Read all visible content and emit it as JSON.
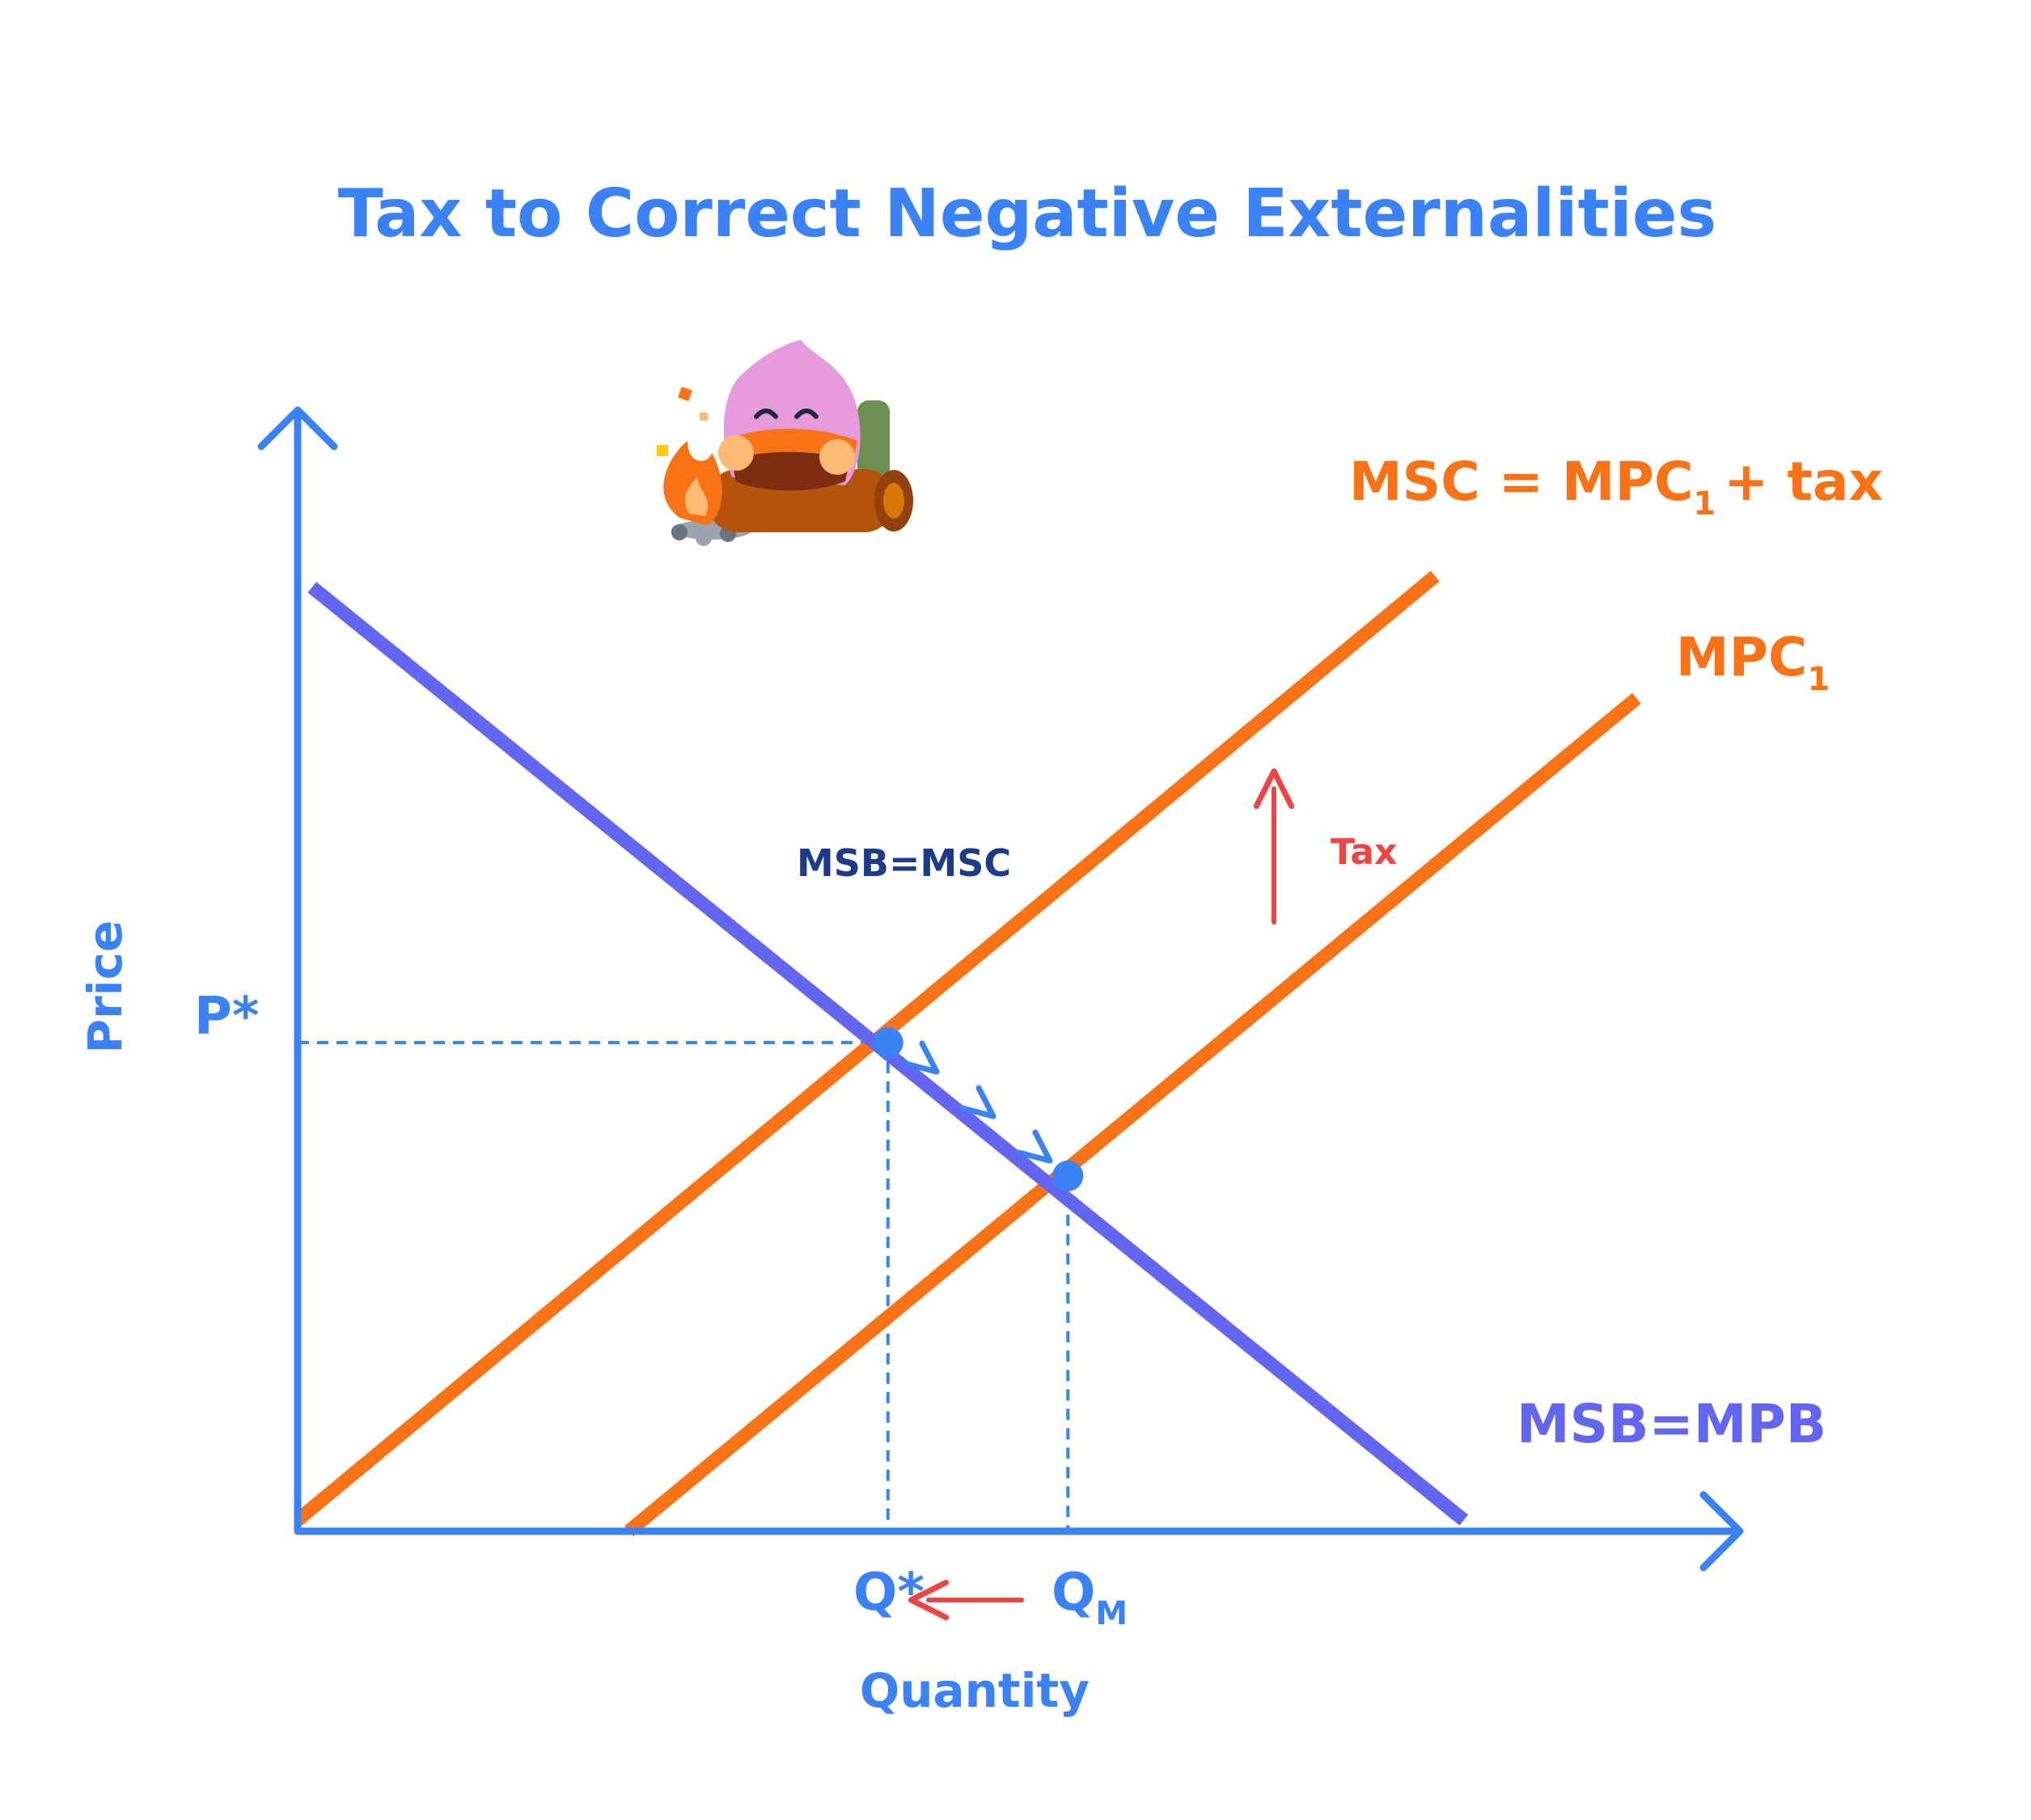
{
  "chart_data": {
    "type": "line",
    "title": "Tax to Correct Negative Externalities",
    "xlabel": "Quantity",
    "ylabel": "Price",
    "xlim": [
      0,
      10
    ],
    "ylim": [
      0,
      10
    ],
    "series": [
      {
        "name": "MSB=MPB",
        "color": "#6366f1",
        "points": [
          [
            0.1,
            8.5
          ],
          [
            8.1,
            0.1
          ]
        ]
      },
      {
        "name": "MSC = MPC1 + tax",
        "color": "#f97316",
        "points": [
          [
            0.0,
            0.1
          ],
          [
            7.9,
            8.6
          ]
        ]
      },
      {
        "name": "MPC1",
        "color": "#f97316",
        "points": [
          [
            2.3,
            0.0
          ],
          [
            9.3,
            7.5
          ]
        ]
      }
    ],
    "equilibria": [
      {
        "label": "MSB=MSC",
        "x_label": "Q*",
        "y_label": "P*",
        "x": 4.1,
        "y": 4.4
      },
      {
        "label": "",
        "x_label": "QM",
        "y_label": "",
        "x": 5.35,
        "y": 3.2
      }
    ],
    "annotations": {
      "tax_label": "Tax",
      "shift_direction": "up",
      "quantity_change": "QM to Q*"
    },
    "colors": {
      "axis": "#3b82f6",
      "demand": "#6366f1",
      "supply": "#f97316",
      "annotation": "#ef4444",
      "dark_text": "#1e3a8a"
    },
    "mascot_icon": "camping-mascot-icon"
  },
  "labels": {
    "title": "Tax to Correct Negative Externalities",
    "x_axis": "Quantity",
    "y_axis": "Price",
    "p_star": "P*",
    "q_star": "Q*",
    "q_m": "Q",
    "q_m_sub": "M",
    "msc_label_a": "MSC = MPC",
    "msc_label_sub": "1",
    "msc_label_b": "+ tax",
    "mpc_label": "MPC",
    "mpc_label_sub": "1",
    "msb_label": "MSB=MPB",
    "eq_label": "MSB=MSC",
    "tax_label": "Tax"
  }
}
